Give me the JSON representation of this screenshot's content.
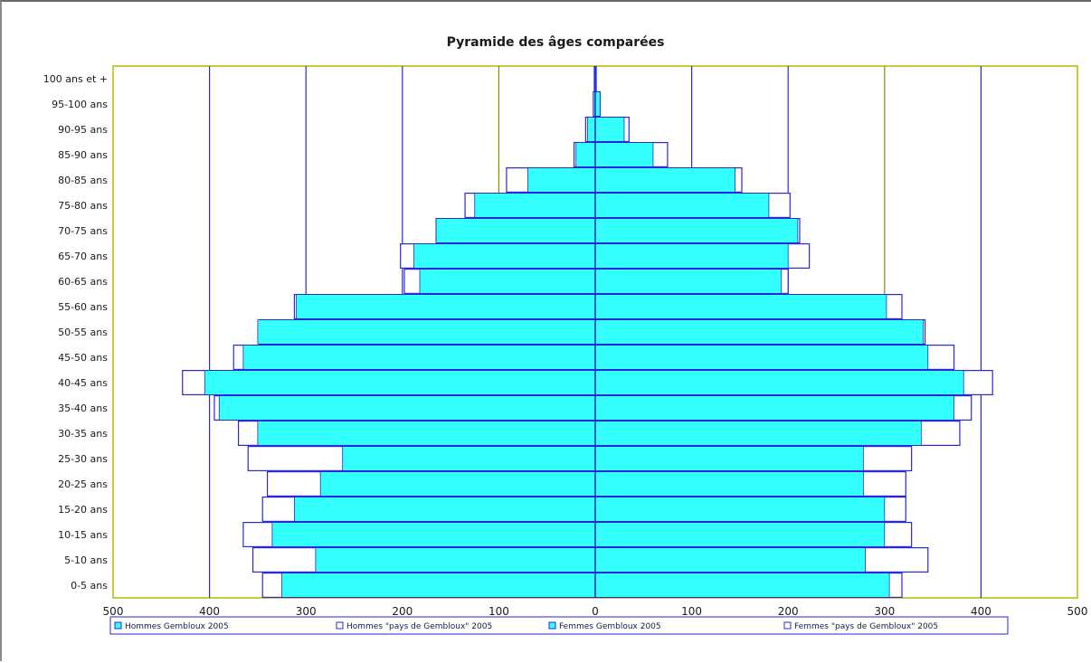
{
  "chart_data": {
    "type": "bar",
    "orientation": "horizontal-population-pyramid",
    "title": "Pyramide des âges comparées",
    "categories": [
      "0-5 ans",
      "5-10 ans",
      "10-15 ans",
      "15-20 ans",
      "20-25 ans",
      "25-30 ans",
      "30-35 ans",
      "35-40 ans",
      "40-45 ans",
      "45-50 ans",
      "50-55 ans",
      "55-60 ans",
      "60-65 ans",
      "65-70 ans",
      "70-75 ans",
      "75-80 ans",
      "80-85 ans",
      "85-90 ans",
      "90-95 ans",
      "95-100 ans",
      "100 ans et +"
    ],
    "x_ticks": [
      "500",
      "400",
      "300",
      "200",
      "100",
      "0",
      "100",
      "200",
      "300",
      "400",
      "500"
    ],
    "xlim": [
      -500,
      500
    ],
    "series": [
      {
        "name": "Hommes Gembloux 2005",
        "side": "left",
        "style": "filled",
        "values": [
          325,
          290,
          335,
          312,
          285,
          262,
          350,
          390,
          405,
          365,
          350,
          310,
          182,
          188,
          165,
          125,
          70,
          20,
          8,
          2,
          1
        ]
      },
      {
        "name": "Hommes \"pays de Gembloux\" 2005",
        "side": "left",
        "style": "outline",
        "values": [
          345,
          355,
          365,
          345,
          340,
          360,
          370,
          395,
          428,
          375,
          348,
          312,
          198,
          202,
          165,
          135,
          92,
          22,
          10,
          2,
          1
        ]
      },
      {
        "name": "Femmes Gembloux 2005",
        "side": "right",
        "style": "filled",
        "values": [
          305,
          280,
          300,
          300,
          278,
          278,
          338,
          372,
          382,
          345,
          340,
          302,
          193,
          200,
          210,
          180,
          145,
          60,
          30,
          5,
          1
        ]
      },
      {
        "name": "Femmes \"pays de Gembloux\" 2005",
        "side": "right",
        "style": "outline",
        "values": [
          318,
          345,
          328,
          322,
          322,
          328,
          378,
          390,
          412,
          372,
          342,
          318,
          200,
          222,
          212,
          202,
          152,
          75,
          35,
          5,
          1
        ]
      }
    ],
    "legend": [
      "Hommes Gembloux 2005",
      "Hommes \"pays de Gembloux\" 2005",
      "Femmes Gembloux 2005",
      "Femmes \"pays de Gembloux\" 2005"
    ],
    "legend_position": "bottom",
    "grid": true,
    "colors": {
      "fill": "#33ffff",
      "fill_border": "#2a2ad0",
      "outline": "#2a2ad0",
      "grid": "#2a2ad0",
      "zero_axis": "#2a2ad0",
      "plot_border": "#b8b800",
      "legend_border": "#2a2ad0"
    }
  }
}
